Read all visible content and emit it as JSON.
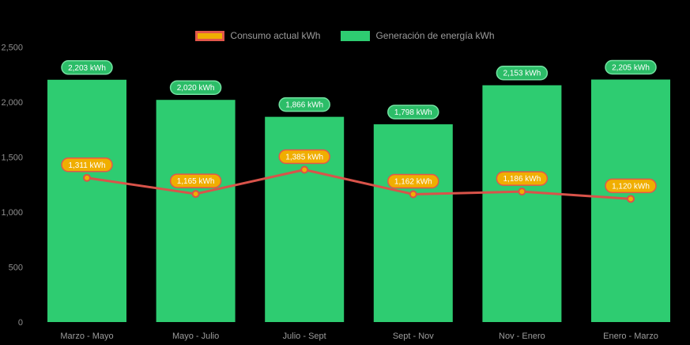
{
  "chart": {
    "background": "#000000",
    "legend": {
      "position": "top-center",
      "items": [
        {
          "label": "Consumo actual kWh",
          "swatch_fill": "#f0ae00",
          "swatch_border": "#e2574c"
        },
        {
          "label": "Generación de energía kWh",
          "swatch_fill": "#2ecc71"
        }
      ]
    }
  },
  "chart_data": {
    "type": "bar",
    "title": "",
    "xlabel": "",
    "ylabel": "",
    "grid": false,
    "legend_position": "top-center",
    "categories": [
      "Marzo - Mayo",
      "Mayo - Julio",
      "Julio - Sept",
      "Sept - Nov",
      "Nov - Enero",
      "Enero - Marzo"
    ],
    "series": [
      {
        "name": "Consumo actual kWh",
        "type": "line",
        "line_color": "#d9534a",
        "marker_fill": "#f0ae00",
        "marker_stroke": "#d9534a",
        "values": [
          1311,
          1165,
          1385,
          1162,
          1186,
          1120
        ],
        "labels": [
          "1,311 kWh",
          "1,165 kWh",
          "1,385 kWh",
          "1,162 kWh",
          "1,186 kWh",
          "1,120 kWh"
        ],
        "label_fill": "#f0ae00",
        "label_border": "#e2574c",
        "label_text_color": "#ffffff"
      },
      {
        "name": "Generación de energía kWh",
        "type": "bar",
        "bar_color": "#2ecc71",
        "values": [
          2203,
          2020,
          1866,
          1798,
          2153,
          2205
        ],
        "labels": [
          "2,203 kWh",
          "2,020 kWh",
          "1,866 kWh",
          "1,798 kWh",
          "2,153 kWh",
          "2,205 kWh"
        ],
        "label_fill": "#2cbd68",
        "label_border": "#72e2a1",
        "label_text_color": "#ffffff"
      }
    ],
    "y_ticks": [
      "0",
      "500",
      "1,000",
      "1,500",
      "2,000",
      "2,500"
    ],
    "y_tick_values": [
      0,
      500,
      1000,
      1500,
      2000,
      2500
    ],
    "ylim": [
      0,
      2500
    ]
  }
}
